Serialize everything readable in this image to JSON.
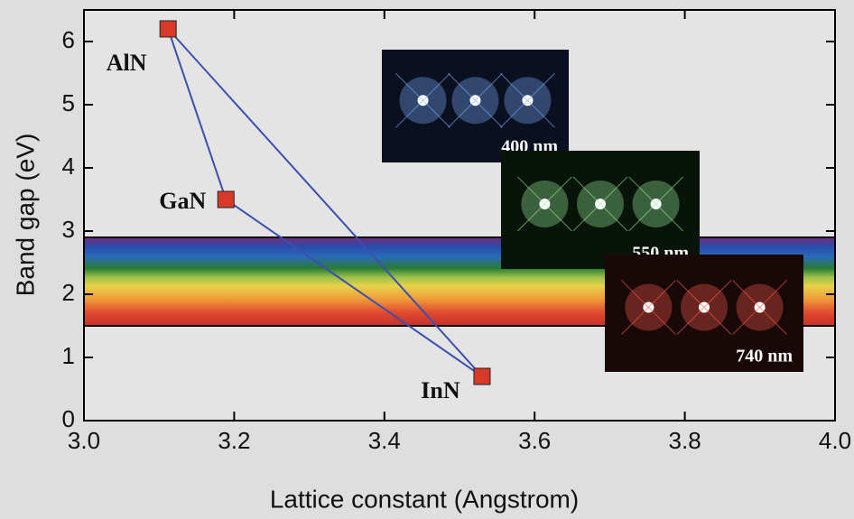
{
  "chart_data": {
    "type": "line",
    "x_label": "Lattice constant (Angstrom)",
    "y_label": "Band gap (eV)",
    "xlim": [
      3.0,
      4.0
    ],
    "ylim": [
      0,
      6.5
    ],
    "xticks": [
      {
        "value": 3.0,
        "label": "3.0"
      },
      {
        "value": 3.2,
        "label": "3.2"
      },
      {
        "value": 3.4,
        "label": "3.4"
      },
      {
        "value": 3.6,
        "label": "3.6"
      },
      {
        "value": 3.8,
        "label": "3.8"
      },
      {
        "value": 4.0,
        "label": "4.0"
      }
    ],
    "yticks": [
      0,
      1,
      2,
      3,
      4,
      5,
      6
    ],
    "point_labels": [
      "AlN",
      "GaN",
      "InN"
    ],
    "x": [
      3.112,
      3.189,
      3.53
    ],
    "series": [
      {
        "color": "#3a4fb0",
        "marker_color": "#d83a2a",
        "values": [
          6.2,
          3.5,
          0.7
        ]
      }
    ],
    "closed": true,
    "spectrum_band": [
      1.5,
      2.9
    ],
    "insets": [
      "400 nm",
      "550 nm",
      "740 nm"
    ]
  }
}
